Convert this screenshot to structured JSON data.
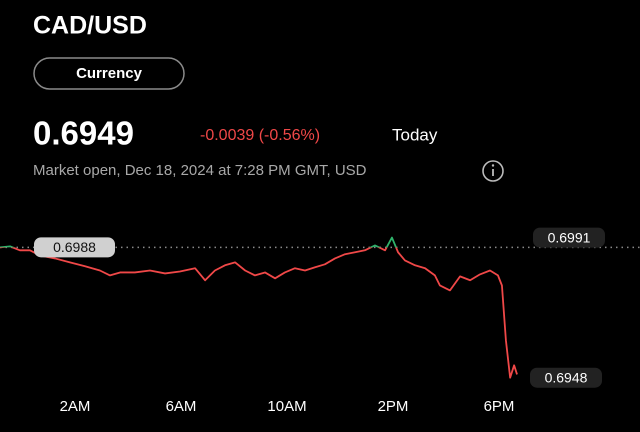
{
  "header": {
    "title": "CAD/USD",
    "chip": "Currency",
    "price": "0.6949",
    "change": "-0.0039 (-0.56%)",
    "period": "Today",
    "status": "Market open, Dec 18, 2024 at 7:28 PM GMT, USD"
  },
  "chart_data": {
    "type": "line",
    "x": [
      -0.83,
      -0.45,
      -0.08,
      0.3,
      0.68,
      1.25,
      1.81,
      2.38,
      2.94,
      3.32,
      3.7,
      4.26,
      4.83,
      5.4,
      5.96,
      6.53,
      6.91,
      7.28,
      7.66,
      8.04,
      8.42,
      8.79,
      9.17,
      9.55,
      9.92,
      10.3,
      10.68,
      11.06,
      11.43,
      11.81,
      12.19,
      12.57,
      12.94,
      13.32,
      13.7,
      13.96,
      14.19,
      14.45,
      14.83,
      15.21,
      15.58,
      15.77,
      16.15,
      16.53,
      16.91,
      17.28,
      17.66,
      17.96,
      18.11,
      18.26,
      18.42,
      18.57,
      18.68
    ],
    "series": [
      {
        "values": [
          0.6988,
          0.69883,
          0.69871,
          0.69871,
          0.69855,
          0.69846,
          0.69834,
          0.69822,
          0.69809,
          0.69794,
          0.69803,
          0.69803,
          0.69809,
          0.698,
          0.69806,
          0.69816,
          0.69779,
          0.69809,
          0.69825,
          0.69834,
          0.69809,
          0.69794,
          0.69803,
          0.69785,
          0.69803,
          0.69816,
          0.69809,
          0.69819,
          0.69828,
          0.69846,
          0.69859,
          0.69865,
          0.69871,
          0.69886,
          0.69871,
          0.6991,
          0.69865,
          0.6984,
          0.69825,
          0.69816,
          0.69794,
          0.69763,
          0.69748,
          0.69791,
          0.69779,
          0.69797,
          0.69809,
          0.69794,
          0.69763,
          0.69595,
          0.6948,
          0.69518,
          0.6949
        ]
      }
    ],
    "colors": {
      "above": "#2fb36b",
      "below": "#f04848"
    },
    "xlim": [
      -0.83,
      23.32
    ],
    "ylim": [
      0.6943,
      0.7001
    ],
    "xticks": [
      {
        "value": 2,
        "label": "2AM"
      },
      {
        "value": 6,
        "label": "6AM"
      },
      {
        "value": 10,
        "label": "10AM"
      },
      {
        "value": 14,
        "label": "2PM"
      },
      {
        "value": 18,
        "label": "6PM"
      }
    ],
    "previous_close": 0.6988,
    "high": 0.6991,
    "low": 0.6948
  }
}
